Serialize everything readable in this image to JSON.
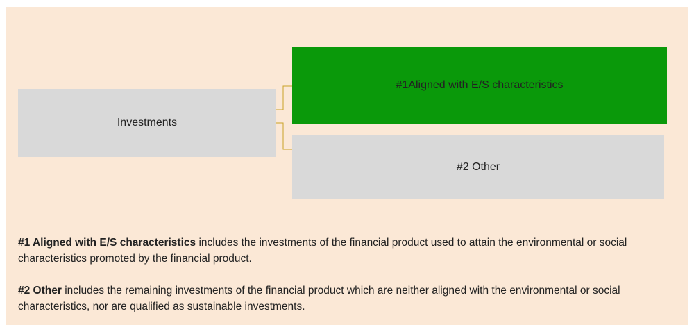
{
  "nodes": [
    {
      "label": "Investments"
    },
    {
      "label": "#1Aligned with E/S characteristics"
    },
    {
      "label": "#2 Other"
    }
  ],
  "notes": [
    {
      "term": "#1 Aligned with E/S characteristics",
      "text": "includes the investments of the financial product used to attain the environmental or social characteristics promoted by the financial product."
    },
    {
      "term": "#2 Other",
      "text": "includes the remaining investments of the financial product which are neither aligned with the environmental or social characteristics, nor are qualified as sustainable investments."
    }
  ]
}
